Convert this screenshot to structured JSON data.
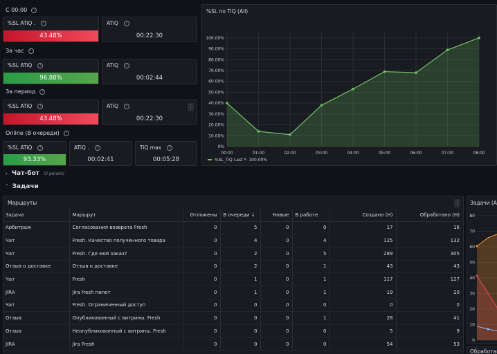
{
  "sections": {
    "since_midnight": "С 00:00",
    "last_hour": "За час",
    "period": "За период",
    "online": "Online (В очереди)"
  },
  "stats": {
    "since_midnight": {
      "sl_title": "%SL ATiQ .",
      "sl_value": "43.48%",
      "atiq_title": "ATiQ",
      "atiq_value": "00:22:30"
    },
    "last_hour": {
      "sl_title": "%SL ATiQ",
      "sl_value": "96.88%",
      "atiq_title": "ATiQ",
      "atiq_value": "00:02:44"
    },
    "period": {
      "sl_title": "%SL ATiQ",
      "sl_value": "43.48%",
      "atiq_title": "ATiQ",
      "atiq_value": "00:22:30"
    },
    "online": {
      "sl_title": "%SL ATiQ",
      "sl_value": "93.33%",
      "atiq_title": "ATiQ .",
      "atiq_value": "00:02:41",
      "tiqmax_title": "TiQ max",
      "tiqmax_value": "00:05:28"
    }
  },
  "chart_panel": {
    "title": "%SL по TiQ (All)"
  },
  "chart_data": {
    "type": "area",
    "title": "%SL по TiQ (All)",
    "x": [
      "00:00",
      "01:00",
      "02:00",
      "03:00",
      "04:00",
      "05:00",
      "06:00",
      "07:00",
      "08:00"
    ],
    "series": [
      {
        "name": "%SL_TiQ",
        "values": [
          40,
          14,
          11,
          38,
          53,
          69,
          68,
          89,
          100
        ]
      }
    ],
    "y_ticks": [
      "0%",
      "10.00%",
      "20.00%",
      "30.00%",
      "40.00%",
      "50.00%",
      "60.00%",
      "70.00%",
      "80.00%",
      "90.00%",
      "100.00%"
    ],
    "ylim": [
      0,
      105
    ],
    "legend": {
      "name": "%SL_TiQ",
      "last": "Last *: 100.00%"
    },
    "grid": true,
    "color": "#73bf69"
  },
  "rows": {
    "chatbot": {
      "label": "Чат-бот",
      "sub": "(3 panels)"
    },
    "tasks": {
      "label": "Задачи"
    }
  },
  "routes_table": {
    "title": "Маршруты",
    "headers": [
      "Задача",
      "Маршрут",
      "Отложены",
      "В очереди ↓",
      "Новые",
      "В работе",
      "Создано (Н)",
      "Обработано (Н)"
    ],
    "rows": [
      [
        "Арбитраж",
        "Согласования возврата Fresh",
        "0",
        "5",
        "0",
        "0",
        "17",
        "16"
      ],
      [
        "Чат",
        "Fresh. Качество полученного товара",
        "0",
        "4",
        "0",
        "4",
        "125",
        "132"
      ],
      [
        "Чат",
        "Fresh. Где мой заказ?",
        "0",
        "2",
        "0",
        "5",
        "289",
        "305"
      ],
      [
        "Отзыв о доставке",
        "Отзыв о доставке",
        "0",
        "2",
        "0",
        "1",
        "43",
        "43"
      ],
      [
        "Чат",
        "Fresh",
        "0",
        "1",
        "0",
        "1",
        "117",
        "127"
      ],
      [
        "JIRA",
        "Jira fresh пилот",
        "0",
        "1",
        "0",
        "1",
        "19",
        "20"
      ],
      [
        "Чат",
        "Fresh. Ограниченный доступ",
        "0",
        "0",
        "0",
        "0",
        "0",
        "0"
      ],
      [
        "Отзыв",
        "Опубликованный с витрины. Fresh",
        "0",
        "0",
        "0",
        "1",
        "28",
        "41"
      ],
      [
        "Отзыв",
        "Неопубликованный с витрины. Fresh",
        "0",
        "0",
        "0",
        "0",
        "5",
        "9"
      ],
      [
        "JIRA",
        "Jira Fresh",
        "0",
        "0",
        "0",
        "0",
        "54",
        "53"
      ]
    ]
  },
  "side_chart": {
    "title": "Задачи (All",
    "y_ticks": [
      "80",
      "70",
      "60",
      "50",
      "40",
      "30",
      "20",
      "10",
      "0"
    ],
    "bottom_label": "Обработано"
  }
}
